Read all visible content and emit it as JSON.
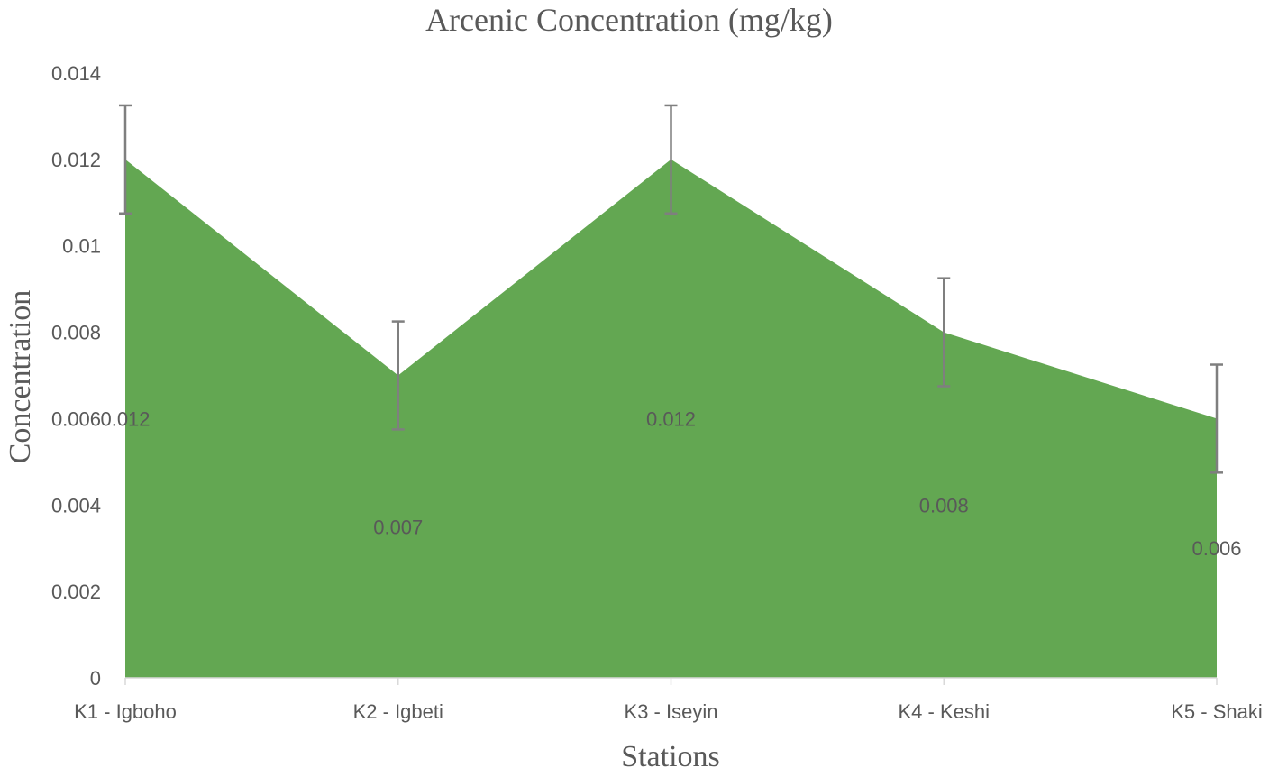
{
  "chart_data": {
    "type": "area",
    "title": "Arcenic Concentration (mg/kg)",
    "xlabel": "Stations",
    "ylabel": "Concentration",
    "categories": [
      "K1 - Igboho",
      "K2 - Igbeti",
      "K3 - Iseyin",
      "K4 - Keshi",
      "K5 - Shaki"
    ],
    "series": [
      {
        "values": [
          0.012,
          0.007,
          0.012,
          0.008,
          0.006
        ],
        "data_labels": [
          "0.012",
          "0.007",
          "0.012",
          "0.008",
          "0.006"
        ],
        "error": 0.00125,
        "color": "#63a752"
      }
    ],
    "ylim": [
      0,
      0.014
    ],
    "yticks": [
      0,
      0.002,
      0.004,
      0.006,
      0.008,
      0.01,
      0.012,
      0.014
    ],
    "ytick_labels": [
      "0",
      "0.002",
      "0.004",
      "0.006",
      "0.008",
      "0.01",
      "0.012",
      "0.014"
    ],
    "grid": false,
    "legend": "none",
    "error_bar_color": "#7f7f7f",
    "axis_color": "#d9d9d9",
    "text_color": "#595959"
  }
}
